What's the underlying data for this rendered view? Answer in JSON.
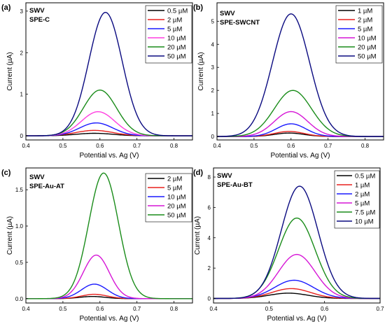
{
  "chart_data": [
    {
      "panel_label": "(a)",
      "type": "line",
      "annotations": [
        "SWV",
        "SPE-C"
      ],
      "xlabel": "Potential vs. Ag (V)",
      "ylabel": "Current (µA)",
      "xlim": [
        0.4,
        0.85
      ],
      "ylim": [
        -0.1,
        3.2
      ],
      "xticks": [
        0.4,
        0.5,
        0.6,
        0.7,
        0.8
      ],
      "yticks": [
        0,
        1,
        2,
        3
      ],
      "legend_position": "top-right",
      "series": [
        {
          "name": "0.5 µM",
          "color": "#000000",
          "peak_x": 0.585,
          "peak_y": 0.06,
          "width": 0.05
        },
        {
          "name": "2 µM",
          "color": "#e8211e",
          "peak_x": 0.585,
          "peak_y": 0.13,
          "width": 0.05
        },
        {
          "name": "5 µM",
          "color": "#1a1aff",
          "peak_x": 0.59,
          "peak_y": 0.31,
          "width": 0.045
        },
        {
          "name": "10 µM",
          "color": "#ff3ee0",
          "peak_x": 0.595,
          "peak_y": 0.58,
          "width": 0.045
        },
        {
          "name": "20 µM",
          "color": "#1a8c1a",
          "peak_x": 0.6,
          "peak_y": 1.1,
          "width": 0.045
        },
        {
          "name": "50 µM",
          "color": "#0a0a80",
          "peak_x": 0.615,
          "peak_y": 2.97,
          "width": 0.045
        }
      ]
    },
    {
      "panel_label": "(b)",
      "type": "line",
      "annotations": [
        "SWV",
        "SPE-SWCNT"
      ],
      "xlabel": "Potential vs. Ag (V)",
      "ylabel": "Current (µA)",
      "xlim": [
        0.4,
        0.85
      ],
      "ylim": [
        -0.15,
        5.8
      ],
      "xticks": [
        0.4,
        0.5,
        0.6,
        0.7,
        0.8
      ],
      "yticks": [
        0,
        1,
        2,
        3,
        4,
        5
      ],
      "legend_position": "top-right",
      "series": [
        {
          "name": "1 µM",
          "color": "#000000",
          "peak_x": 0.595,
          "peak_y": 0.15,
          "width": 0.04
        },
        {
          "name": "2 µM",
          "color": "#e8211e",
          "peak_x": 0.595,
          "peak_y": 0.22,
          "width": 0.04
        },
        {
          "name": "5 µM",
          "color": "#1a1aff",
          "peak_x": 0.6,
          "peak_y": 0.55,
          "width": 0.04
        },
        {
          "name": "10 µM",
          "color": "#d616d6",
          "peak_x": 0.6,
          "peak_y": 1.08,
          "width": 0.045
        },
        {
          "name": "20 µM",
          "color": "#1a8c1a",
          "peak_x": 0.605,
          "peak_y": 2.0,
          "width": 0.05
        },
        {
          "name": "50 µM",
          "color": "#0a0a80",
          "peak_x": 0.6,
          "peak_y": 5.32,
          "width": 0.05
        }
      ]
    },
    {
      "panel_label": "(c)",
      "type": "line",
      "annotations": [
        "SWV",
        "SPE-Au-AT"
      ],
      "xlabel": "Potential vs. Ag (V)",
      "ylabel": "Current (µA)",
      "xlim": [
        0.4,
        0.85
      ],
      "ylim": [
        -0.06,
        1.8
      ],
      "xticks": [
        0.4,
        0.5,
        0.6,
        0.7,
        0.8
      ],
      "yticks": [
        0,
        0.5,
        1,
        1.5
      ],
      "ytick_labels": [
        "0.0",
        "0.5",
        "1.0",
        "1.5"
      ],
      "legend_position": "top-right",
      "series": [
        {
          "name": "2 µM",
          "color": "#000000",
          "peak_x": 0.58,
          "peak_y": 0.03,
          "width": 0.035
        },
        {
          "name": "5 µM",
          "color": "#e8211e",
          "peak_x": 0.585,
          "peak_y": 0.06,
          "width": 0.035
        },
        {
          "name": "10 µM",
          "color": "#1a1aff",
          "peak_x": 0.585,
          "peak_y": 0.2,
          "width": 0.035
        },
        {
          "name": "20 µM",
          "color": "#d616d6",
          "peak_x": 0.59,
          "peak_y": 0.6,
          "width": 0.035
        },
        {
          "name": "50 µM",
          "color": "#1a8c1a",
          "peak_x": 0.61,
          "peak_y": 1.73,
          "width": 0.04
        }
      ]
    },
    {
      "panel_label": "(d)",
      "type": "line",
      "annotations": [
        "SWV",
        "SPE-Au-BT"
      ],
      "xlabel": "Potential vs. Ag (V)",
      "ylabel": "Current (µA)",
      "xlim": [
        0.4,
        0.7
      ],
      "ylim": [
        -0.3,
        8.6
      ],
      "xticks": [
        0.4,
        0.5,
        0.6,
        0.7
      ],
      "yticks": [
        0,
        2,
        4,
        6,
        8
      ],
      "legend_position": "top-right",
      "series": [
        {
          "name": "0.5 µM",
          "color": "#000000",
          "peak_x": 0.535,
          "peak_y": 0.35,
          "width": 0.035
        },
        {
          "name": "1 µM",
          "color": "#e8211e",
          "peak_x": 0.54,
          "peak_y": 0.65,
          "width": 0.035
        },
        {
          "name": "2 µM",
          "color": "#1a1aff",
          "peak_x": 0.545,
          "peak_y": 1.2,
          "width": 0.035
        },
        {
          "name": "5 µM",
          "color": "#d616d6",
          "peak_x": 0.55,
          "peak_y": 2.9,
          "width": 0.033
        },
        {
          "name": "7.5 µM",
          "color": "#1a8c1a",
          "peak_x": 0.55,
          "peak_y": 5.3,
          "width": 0.033
        },
        {
          "name": "10 µM",
          "color": "#0a0a80",
          "peak_x": 0.555,
          "peak_y": 7.4,
          "width": 0.033
        }
      ]
    }
  ]
}
